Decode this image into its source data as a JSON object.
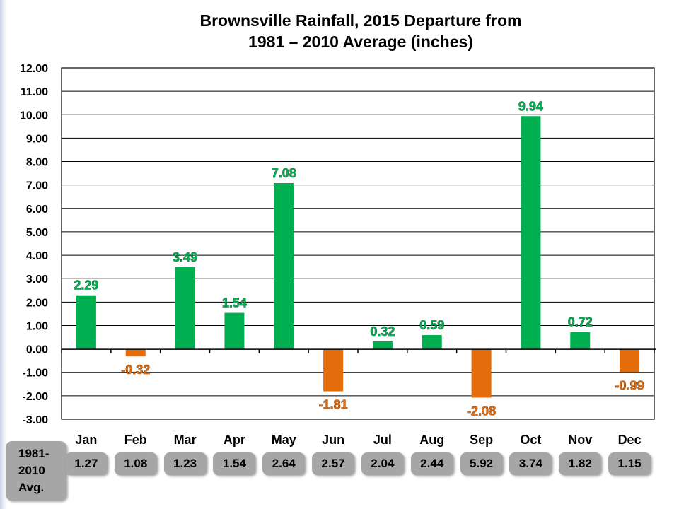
{
  "chart_data": {
    "type": "bar",
    "title_line1": "Brownsville Rainfall, 2015 Departure from",
    "title_line2": "1981 – 2010 Average (inches)",
    "categories": [
      "Jan",
      "Feb",
      "Mar",
      "Apr",
      "May",
      "Jun",
      "Jul",
      "Aug",
      "Sep",
      "Oct",
      "Nov",
      "Dec"
    ],
    "values": [
      2.29,
      -0.32,
      3.49,
      1.54,
      7.08,
      -1.81,
      0.32,
      0.59,
      -2.08,
      9.94,
      0.72,
      -0.99
    ],
    "value_labels": [
      "2.29",
      "-0.32",
      "3.49",
      "1.54",
      "7.08",
      "-1.81",
      "0.32",
      "0.59",
      "-2.08",
      "9.94",
      "0.72",
      "-0.99"
    ],
    "ylim": [
      -3,
      12
    ],
    "y_ticks": [
      "12.00",
      "11.00",
      "10.00",
      "9.00",
      "8.00",
      "7.00",
      "6.00",
      "5.00",
      "4.00",
      "3.00",
      "2.00",
      "1.00",
      "0.00",
      "-1.00",
      "-2.00",
      "-3.00"
    ],
    "grid": true,
    "colors": {
      "positive": "#00b050",
      "negative": "#e46c0a",
      "positive_label": "#00b050",
      "negative_label": "#e46c0a"
    }
  },
  "averages": {
    "label_lines": [
      "1981-",
      "2010",
      "Avg."
    ],
    "values": [
      "1.27",
      "1.08",
      "1.23",
      "1.54",
      "2.64",
      "2.57",
      "2.04",
      "2.44",
      "5.92",
      "3.74",
      "1.82",
      "1.15"
    ]
  }
}
